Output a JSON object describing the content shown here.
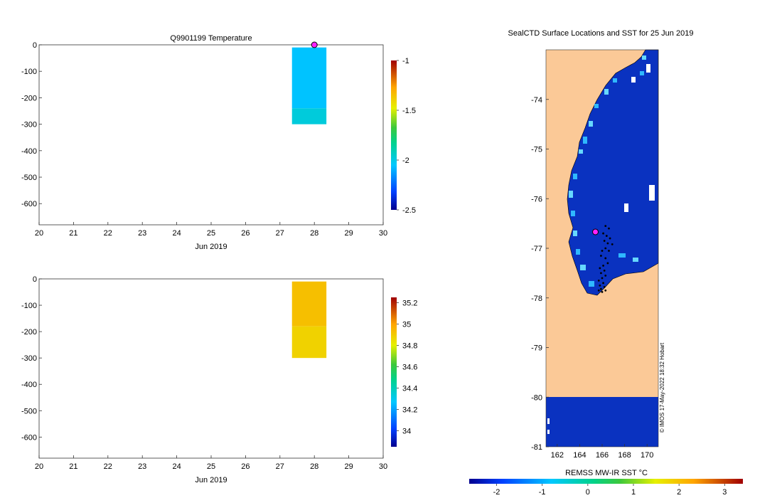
{
  "chart_data": [
    {
      "type": "heatmap",
      "title": "Q9901199  Temperature",
      "xlabel": "Jun 2019",
      "ylabel": "",
      "xlim": [
        20,
        30
      ],
      "ylim": [
        -680,
        0
      ],
      "x_ticks": [
        "20",
        "21",
        "22",
        "23",
        "24",
        "25",
        "26",
        "27",
        "28",
        "29",
        "30"
      ],
      "y_ticks": [
        "0",
        "-100",
        "-200",
        "-300",
        "-400",
        "-500",
        "-600"
      ],
      "colorbar": {
        "range": [
          -2.5,
          -1
        ],
        "ticks": [
          "-1",
          "-1.5",
          "-2",
          "-2.5"
        ]
      },
      "profiles": [
        {
          "day": 27.85,
          "depth_top": -10,
          "depth_bottom": -240,
          "value": -2.06
        },
        {
          "day": 27.85,
          "depth_top": -240,
          "depth_bottom": -300,
          "value": -1.98
        }
      ],
      "marker": {
        "day": 28.0,
        "depth": 0
      }
    },
    {
      "type": "heatmap",
      "title": "",
      "xlabel": "Jun 2019",
      "ylabel": "",
      "xlim": [
        20,
        30
      ],
      "ylim": [
        -680,
        0
      ],
      "x_ticks": [
        "20",
        "21",
        "22",
        "23",
        "24",
        "25",
        "26",
        "27",
        "28",
        "29",
        "30"
      ],
      "y_ticks": [
        "0",
        "-100",
        "-200",
        "-300",
        "-400",
        "-500",
        "-600"
      ],
      "colorbar": {
        "range": [
          33.85,
          35.25
        ],
        "ticks": [
          "35.2",
          "35",
          "34.8",
          "34.6",
          "34.4",
          "34.2",
          "34"
        ]
      },
      "profiles": [
        {
          "day": 27.85,
          "depth_top": -10,
          "depth_bottom": -180,
          "value": 34.93
        },
        {
          "day": 27.85,
          "depth_top": -180,
          "depth_bottom": -300,
          "value": 34.88
        }
      ]
    },
    {
      "type": "map",
      "title": "SealCTD Surface Locations and SST for 25 Jun 2019",
      "xlim": [
        161,
        171
      ],
      "ylim": [
        -81,
        -73
      ],
      "x_ticks": [
        "162",
        "164",
        "166",
        "168",
        "170"
      ],
      "y_ticks": [
        "-74",
        "-75",
        "-76",
        "-77",
        "-78",
        "-79",
        "-80",
        "-81"
      ],
      "colorbar": {
        "label": "REMSS MW-IR SST °C",
        "range": [
          -2.6,
          3.4
        ],
        "ticks": [
          "-2",
          "-1",
          "0",
          "1",
          "2",
          "3"
        ]
      },
      "sst_value": -1.9,
      "land_color": "#fbc997",
      "latest_location": {
        "lon": 165.4,
        "lat": -76.67
      },
      "track_points": [
        [
          166.3,
          -76.55
        ],
        [
          166.6,
          -76.6
        ],
        [
          166.1,
          -76.7
        ],
        [
          166.4,
          -76.75
        ],
        [
          166.7,
          -76.8
        ],
        [
          166.2,
          -76.85
        ],
        [
          166.5,
          -76.9
        ],
        [
          166.9,
          -76.92
        ],
        [
          166.3,
          -77.0
        ],
        [
          166.0,
          -77.05
        ],
        [
          166.6,
          -77.05
        ],
        [
          165.9,
          -77.15
        ],
        [
          166.3,
          -77.2
        ],
        [
          166.5,
          -77.3
        ],
        [
          166.1,
          -77.35
        ],
        [
          165.8,
          -77.4
        ],
        [
          166.2,
          -77.45
        ],
        [
          165.9,
          -77.5
        ],
        [
          166.3,
          -77.55
        ],
        [
          166.0,
          -77.6
        ],
        [
          165.7,
          -77.65
        ],
        [
          166.1,
          -77.7
        ],
        [
          165.8,
          -77.75
        ],
        [
          166.2,
          -77.78
        ],
        [
          165.9,
          -77.82
        ],
        [
          166.3,
          -77.85
        ],
        [
          165.7,
          -77.85
        ],
        [
          166.0,
          -77.88
        ]
      ],
      "credit": "© IMOS 17-May-2022 18:32 Hobart"
    }
  ]
}
